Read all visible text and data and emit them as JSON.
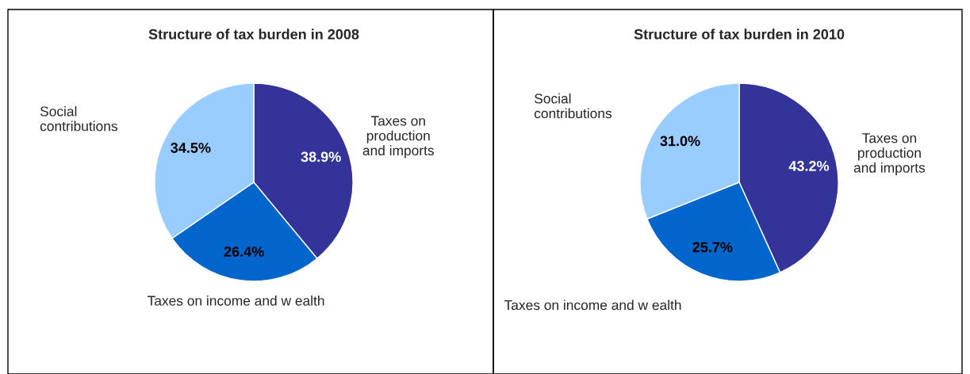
{
  "chart_data": [
    {
      "type": "pie",
      "title": "Structure of tax burden in 2008",
      "categories": [
        "Taxes on\nproduction\nand imports",
        "Taxes on income and w ealth",
        "Social\ncontributions"
      ],
      "values": [
        38.9,
        26.4,
        34.5
      ],
      "value_labels": [
        "38.9%",
        "26.4%",
        "34.5%"
      ],
      "colors": [
        "#333399",
        "#0066cc",
        "#99ccff"
      ],
      "legend": false
    },
    {
      "type": "pie",
      "title": "Structure of tax burden in 2010",
      "categories": [
        "Taxes on\nproduction\nand imports",
        "Taxes on income and w ealth",
        "Social\ncontributions"
      ],
      "values": [
        43.2,
        25.7,
        31.0
      ],
      "value_labels": [
        "43.2%",
        "25.7%",
        "31.0%"
      ],
      "colors": [
        "#333399",
        "#0066cc",
        "#99ccff"
      ],
      "legend": false
    }
  ]
}
